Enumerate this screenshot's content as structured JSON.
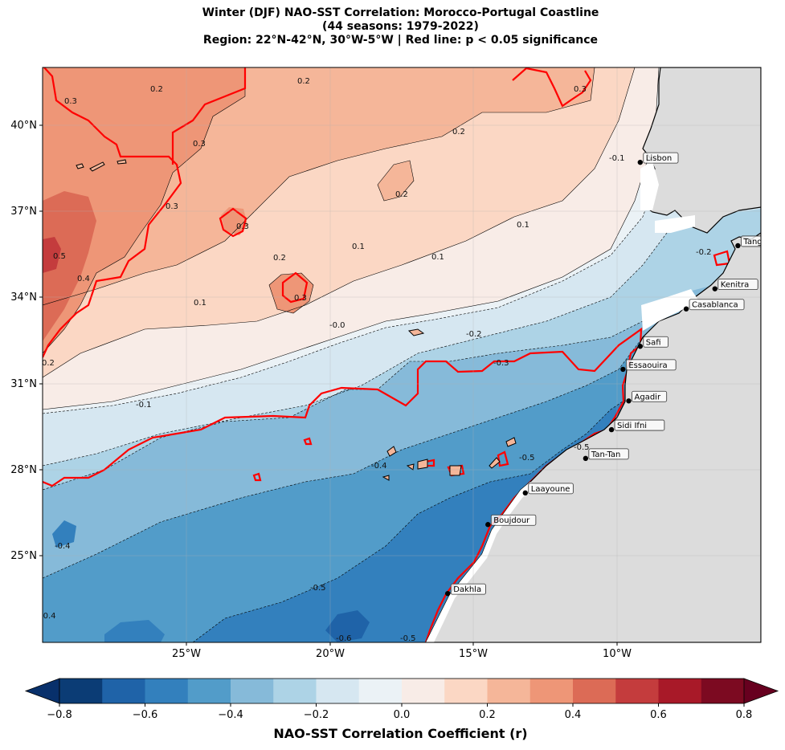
{
  "title": {
    "line1": "Winter (DJF) NAO-SST Correlation: Morocco-Portugal Coastline",
    "line2": "(44 seasons: 1979-2022)",
    "line3": "Region: 22°N-42°N, 30°W-5°W | Red line: p < 0.05 significance"
  },
  "map": {
    "region": {
      "lat_min": 22,
      "lat_max": 42,
      "lon_min": -30,
      "lon_max": -5
    },
    "lon_ticks": [
      "25°W",
      "20°W",
      "15°W",
      "10°W"
    ],
    "lat_ticks": [
      "40°N",
      "37°N",
      "34°N",
      "31°N",
      "28°N",
      "25°N"
    ],
    "land_color": "#dcdcdc",
    "significance_color": "#ff0000",
    "cities": [
      {
        "name": "Lisbon",
        "lat": 38.7,
        "lon": -9.2
      },
      {
        "name": "Tangier",
        "lat": 35.8,
        "lon": -5.8
      },
      {
        "name": "Kenitra",
        "lat": 34.3,
        "lon": -6.6
      },
      {
        "name": "Casablanca",
        "lat": 33.6,
        "lon": -7.6
      },
      {
        "name": "Safi",
        "lat": 32.3,
        "lon": -9.2
      },
      {
        "name": "Essaouira",
        "lat": 31.5,
        "lon": -9.8
      },
      {
        "name": "Agadir",
        "lat": 30.4,
        "lon": -9.6
      },
      {
        "name": "Sidi Ifni",
        "lat": 29.4,
        "lon": -10.2
      },
      {
        "name": "Tan-Tan",
        "lat": 28.4,
        "lon": -11.1
      },
      {
        "name": "Laayoune",
        "lat": 27.2,
        "lon": -13.2
      },
      {
        "name": "Boujdour",
        "lat": 26.1,
        "lon": -14.5
      },
      {
        "name": "Dakhla",
        "lat": 23.7,
        "lon": -15.9
      }
    ],
    "contour_labels": [
      "0.2",
      "0.2",
      "0.3",
      "0.3",
      "0.2",
      "0.3",
      "0.3",
      "0.3",
      "0.2",
      "0.1",
      "0.1",
      "0.1",
      "0.2",
      "0.3",
      "0.1",
      "0.5",
      "0.4",
      "0.2",
      "-0.0",
      "-0.2",
      "-0.3",
      "-0.1",
      "-0.1",
      "-0.2",
      "-0.4",
      "-0.5",
      "-0.4",
      "-0.5",
      "-0.4",
      "-0.5",
      "-0.6",
      "-0.5"
    ]
  },
  "colorbar": {
    "ticks": [
      "−0.8",
      "−0.6",
      "−0.4",
      "−0.2",
      "0.0",
      "0.2",
      "0.4",
      "0.6",
      "0.8"
    ],
    "colors": [
      "#0b3c75",
      "#1f63a8",
      "#3380bd",
      "#529cc9",
      "#86bad9",
      "#add3e6",
      "#d6e7f1",
      "#ebf2f6",
      "#f8ece7",
      "#fbd7c4",
      "#f5b699",
      "#ee9677",
      "#dc6b56",
      "#c43c3d",
      "#a81928",
      "#7c0a21"
    ],
    "label": "NAO-SST Correlation Coefficient (r)"
  }
}
